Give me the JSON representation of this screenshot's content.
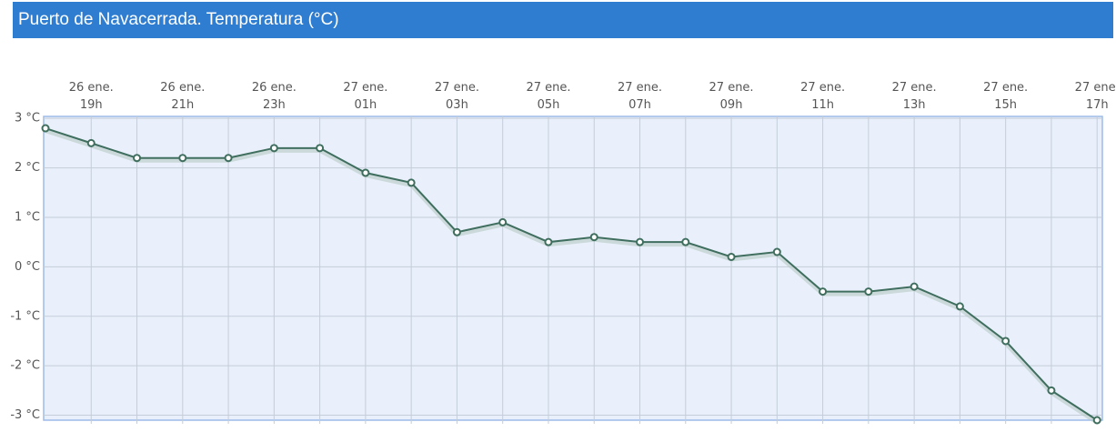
{
  "chart_data": {
    "type": "line",
    "title": "Puerto de Navacerrada. Temperatura (°C)",
    "categories": [
      null,
      [
        "26 ene.",
        "19h"
      ],
      null,
      [
        "26 ene.",
        "21h"
      ],
      null,
      [
        "26 ene.",
        "23h"
      ],
      null,
      [
        "27 ene.",
        "01h"
      ],
      null,
      [
        "27 ene.",
        "03h"
      ],
      null,
      [
        "27 ene.",
        "05h"
      ],
      null,
      [
        "27 ene.",
        "07h"
      ],
      null,
      [
        "27 ene.",
        "09h"
      ],
      null,
      [
        "27 ene.",
        "11h"
      ],
      null,
      [
        "27 ene.",
        "13h"
      ],
      null,
      [
        "27 ene.",
        "15h"
      ],
      null,
      [
        "27 ene.",
        "17h"
      ]
    ],
    "values": [
      2.8,
      2.5,
      2.2,
      2.2,
      2.2,
      2.4,
      2.4,
      1.9,
      1.7,
      0.7,
      0.9,
      0.5,
      0.6,
      0.5,
      0.5,
      0.2,
      0.3,
      -0.5,
      -0.5,
      -0.4,
      -0.8,
      -1.5,
      -2.5,
      -3.1
    ],
    "color": "#3f6e5e",
    "ylim": [
      -3.1,
      3.04
    ],
    "yticks": [
      {
        "value": 3,
        "label": "3 °C"
      },
      {
        "value": 2,
        "label": "2 °C"
      },
      {
        "value": 1,
        "label": "1 °C"
      },
      {
        "value": 0,
        "label": "0 °C"
      },
      {
        "value": -1,
        "label": "-1 °C"
      },
      {
        "value": -2,
        "label": "-2 °C"
      },
      {
        "value": -3,
        "label": "-3 °C"
      }
    ],
    "grid": true
  }
}
